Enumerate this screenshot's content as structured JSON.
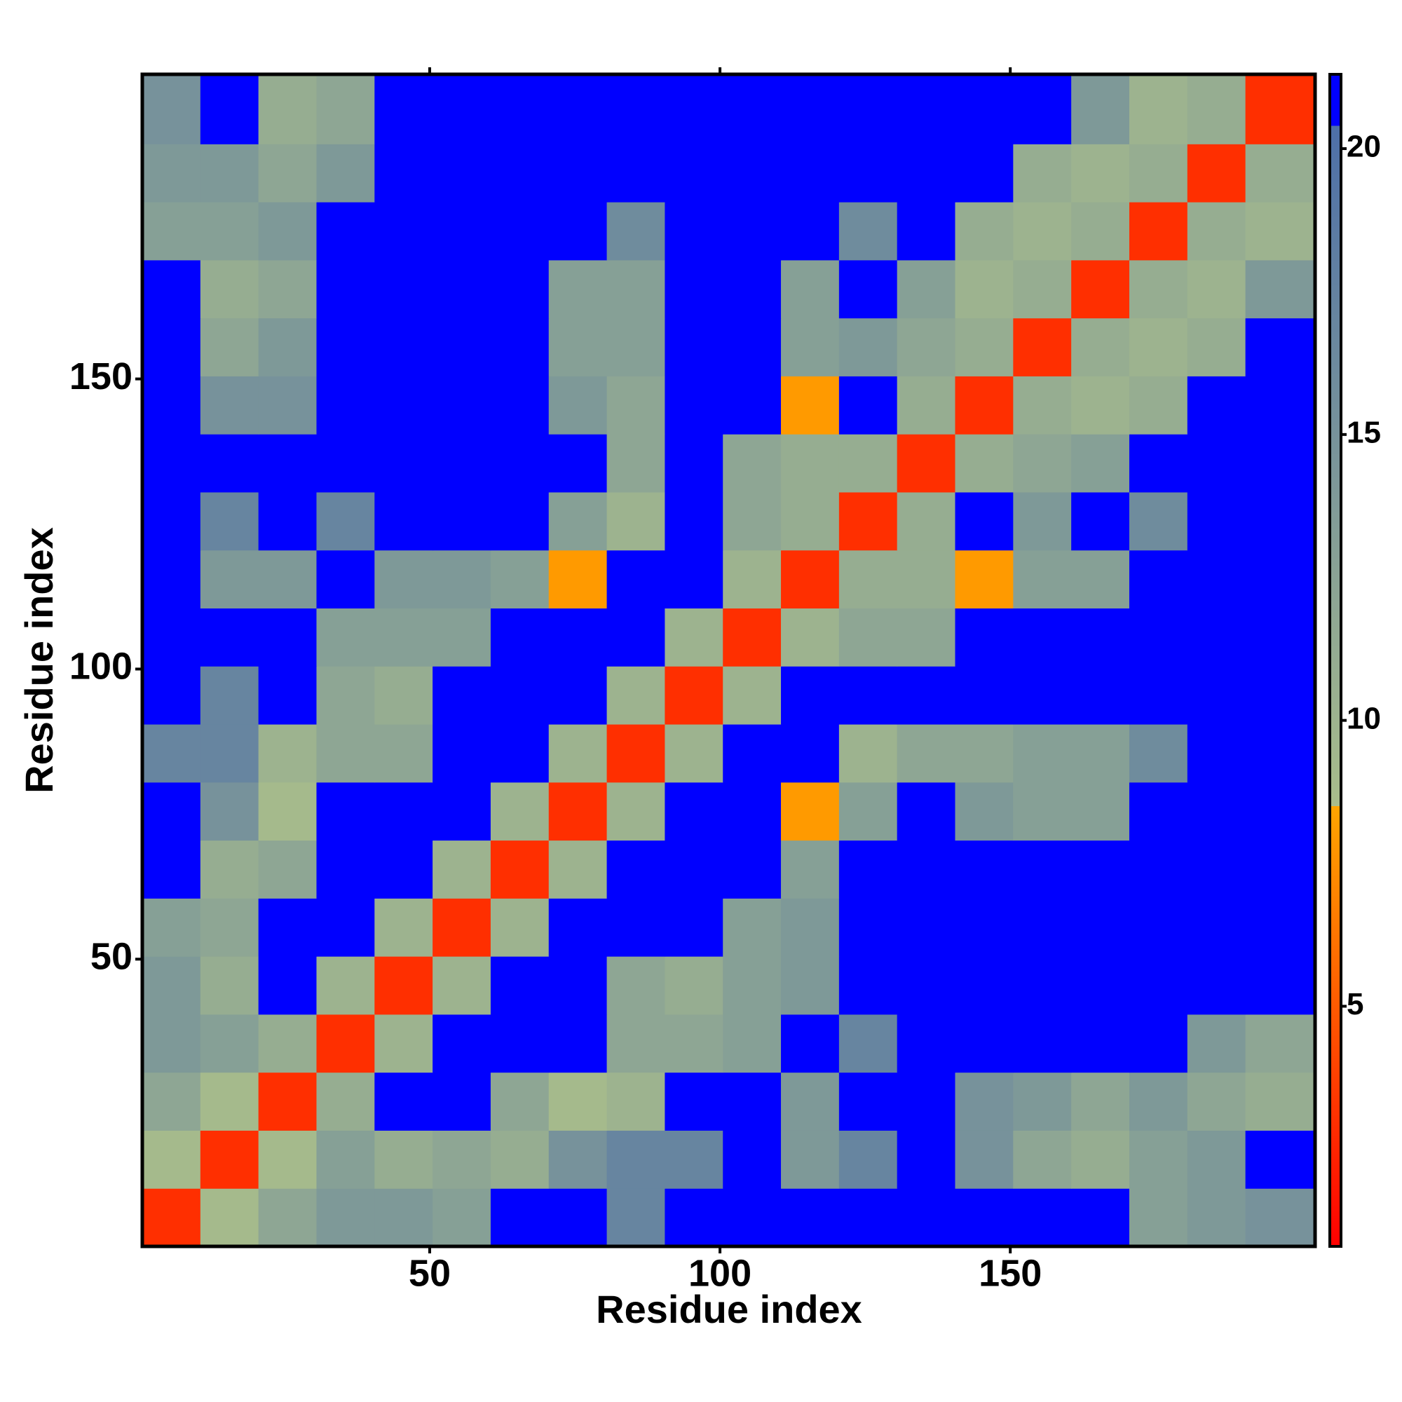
{
  "chart_data": {
    "type": "heatmap",
    "xlabel": "Residue index",
    "ylabel": "Residue index",
    "x_edges": [
      0.5,
      10.5,
      20.5,
      30.5,
      40.5,
      50.5,
      60.5,
      70.5,
      80.5,
      90.5,
      100.5,
      110.5,
      120.5,
      130.5,
      140.5,
      150.5,
      160.5,
      170.5,
      180.5,
      190.5,
      202.5
    ],
    "y_edges": [
      0.5,
      10.5,
      20.5,
      30.5,
      40.5,
      50.5,
      60.5,
      70.5,
      80.5,
      90.5,
      100.5,
      110.5,
      120.5,
      130.5,
      140.5,
      150.5,
      160.5,
      170.5,
      180.5,
      190.5,
      202.5
    ],
    "z": [
      [
        3,
        9,
        12,
        14,
        14,
        13,
        21.3,
        21.3,
        17,
        21.3,
        21.3,
        21.3,
        21.3,
        21.3,
        21.3,
        21.3,
        21.3,
        13,
        14,
        15
      ],
      [
        9,
        3,
        9,
        13,
        11,
        12,
        11,
        15,
        17,
        17,
        21.3,
        14,
        17,
        21.3,
        15,
        12,
        11,
        13,
        14,
        21.3
      ],
      [
        12,
        9,
        3,
        11,
        21.3,
        21.3,
        12,
        9,
        10,
        21.3,
        21.3,
        14,
        21.3,
        21.3,
        15,
        14,
        12,
        14,
        12,
        11
      ],
      [
        14,
        13,
        11,
        3,
        10,
        21.3,
        21.3,
        21.3,
        12,
        12,
        13,
        21.3,
        17,
        21.3,
        21.3,
        21.3,
        21.3,
        21.3,
        14,
        12
      ],
      [
        14,
        11,
        21.3,
        10,
        3,
        10,
        21.3,
        21.3,
        12,
        11,
        13,
        14,
        21.3,
        21.3,
        21.3,
        21.3,
        21.3,
        21.3,
        21.3,
        21.3
      ],
      [
        13,
        12,
        21.3,
        21.3,
        10,
        3,
        10,
        21.3,
        21.3,
        21.3,
        13,
        14,
        21.3,
        21.3,
        21.3,
        21.3,
        21.3,
        21.3,
        21.3,
        21.3
      ],
      [
        21.3,
        11,
        12,
        21.3,
        21.3,
        10,
        3,
        10,
        21.3,
        21.3,
        21.3,
        13,
        21.3,
        21.3,
        21.3,
        21.3,
        21.3,
        21.3,
        21.3,
        21.3
      ],
      [
        21.3,
        15,
        9,
        21.3,
        21.3,
        21.3,
        10,
        3,
        10,
        21.3,
        21.3,
        8,
        13,
        21.3,
        14,
        13,
        13,
        21.3,
        21.3,
        21.3
      ],
      [
        17,
        17,
        10,
        12,
        12,
        21.3,
        21.3,
        10,
        3,
        10,
        21.3,
        21.3,
        10,
        12,
        12,
        13,
        13,
        16,
        21.3,
        21.3
      ],
      [
        21.3,
        17,
        21.3,
        12,
        11,
        21.3,
        21.3,
        21.3,
        10,
        3,
        10,
        21.3,
        21.3,
        21.3,
        21.3,
        21.3,
        21.3,
        21.3,
        21.3,
        21.3
      ],
      [
        21.3,
        21.3,
        21.3,
        13,
        13,
        13,
        21.3,
        21.3,
        21.3,
        10,
        3,
        10,
        12,
        12,
        21.3,
        21.3,
        21.3,
        21.3,
        21.3,
        21.3
      ],
      [
        21.3,
        14,
        14,
        21.3,
        14,
        14,
        13,
        8,
        21.3,
        21.3,
        10,
        3,
        11,
        11,
        8,
        13,
        13,
        21.3,
        21.3,
        21.3
      ],
      [
        21.3,
        17,
        21.3,
        17,
        21.3,
        21.3,
        21.3,
        13,
        10,
        21.3,
        12,
        11,
        3,
        11,
        21.3,
        14,
        21.3,
        16,
        21.3,
        21.3
      ],
      [
        21.3,
        21.3,
        21.3,
        21.3,
        21.3,
        21.3,
        21.3,
        21.3,
        12,
        21.3,
        12,
        11,
        11,
        3,
        11,
        12,
        13,
        21.3,
        21.3,
        21.3
      ],
      [
        21.3,
        15,
        15,
        21.3,
        21.3,
        21.3,
        21.3,
        14,
        12,
        21.3,
        21.3,
        8,
        21.3,
        11,
        3,
        11,
        10,
        11,
        21.3,
        21.3
      ],
      [
        21.3,
        12,
        14,
        21.3,
        21.3,
        21.3,
        21.3,
        13,
        13,
        21.3,
        21.3,
        13,
        14,
        12,
        11,
        3,
        11,
        10,
        11,
        21.3
      ],
      [
        21.3,
        11,
        12,
        21.3,
        21.3,
        21.3,
        21.3,
        13,
        13,
        21.3,
        21.3,
        13,
        21.3,
        13,
        10,
        11,
        3,
        11,
        10,
        14
      ],
      [
        13,
        13,
        14,
        21.3,
        21.3,
        21.3,
        21.3,
        21.3,
        16,
        21.3,
        21.3,
        21.3,
        16,
        21.3,
        11,
        10,
        11,
        3,
        11,
        10
      ],
      [
        14,
        14,
        12,
        14,
        21.3,
        21.3,
        21.3,
        21.3,
        21.3,
        21.3,
        21.3,
        21.3,
        21.3,
        21.3,
        21.3,
        11,
        10,
        11,
        3,
        11
      ],
      [
        15,
        21.3,
        11,
        12,
        21.3,
        21.3,
        21.3,
        21.3,
        21.3,
        21.3,
        21.3,
        21.3,
        21.3,
        21.3,
        21.3,
        21.3,
        14,
        10,
        11,
        3
      ]
    ],
    "xlim": [
      0.5,
      202.5
    ],
    "ylim": [
      0.5,
      202.5
    ],
    "xticks": [
      50,
      100,
      150
    ],
    "yticks": [
      50,
      100,
      150
    ],
    "zlim": [
      0.8,
      21.3
    ],
    "zticks": [
      5,
      10,
      15,
      20
    ],
    "colorscale": [
      [
        0.8,
        "#ff0000"
      ],
      [
        8.5,
        "#ffa500"
      ],
      [
        8.5,
        "#a9bd8b"
      ],
      [
        20.4,
        "#4d6fa8"
      ],
      [
        20.4,
        "#0000ff"
      ],
      [
        21.3,
        "#0000ff"
      ]
    ]
  }
}
